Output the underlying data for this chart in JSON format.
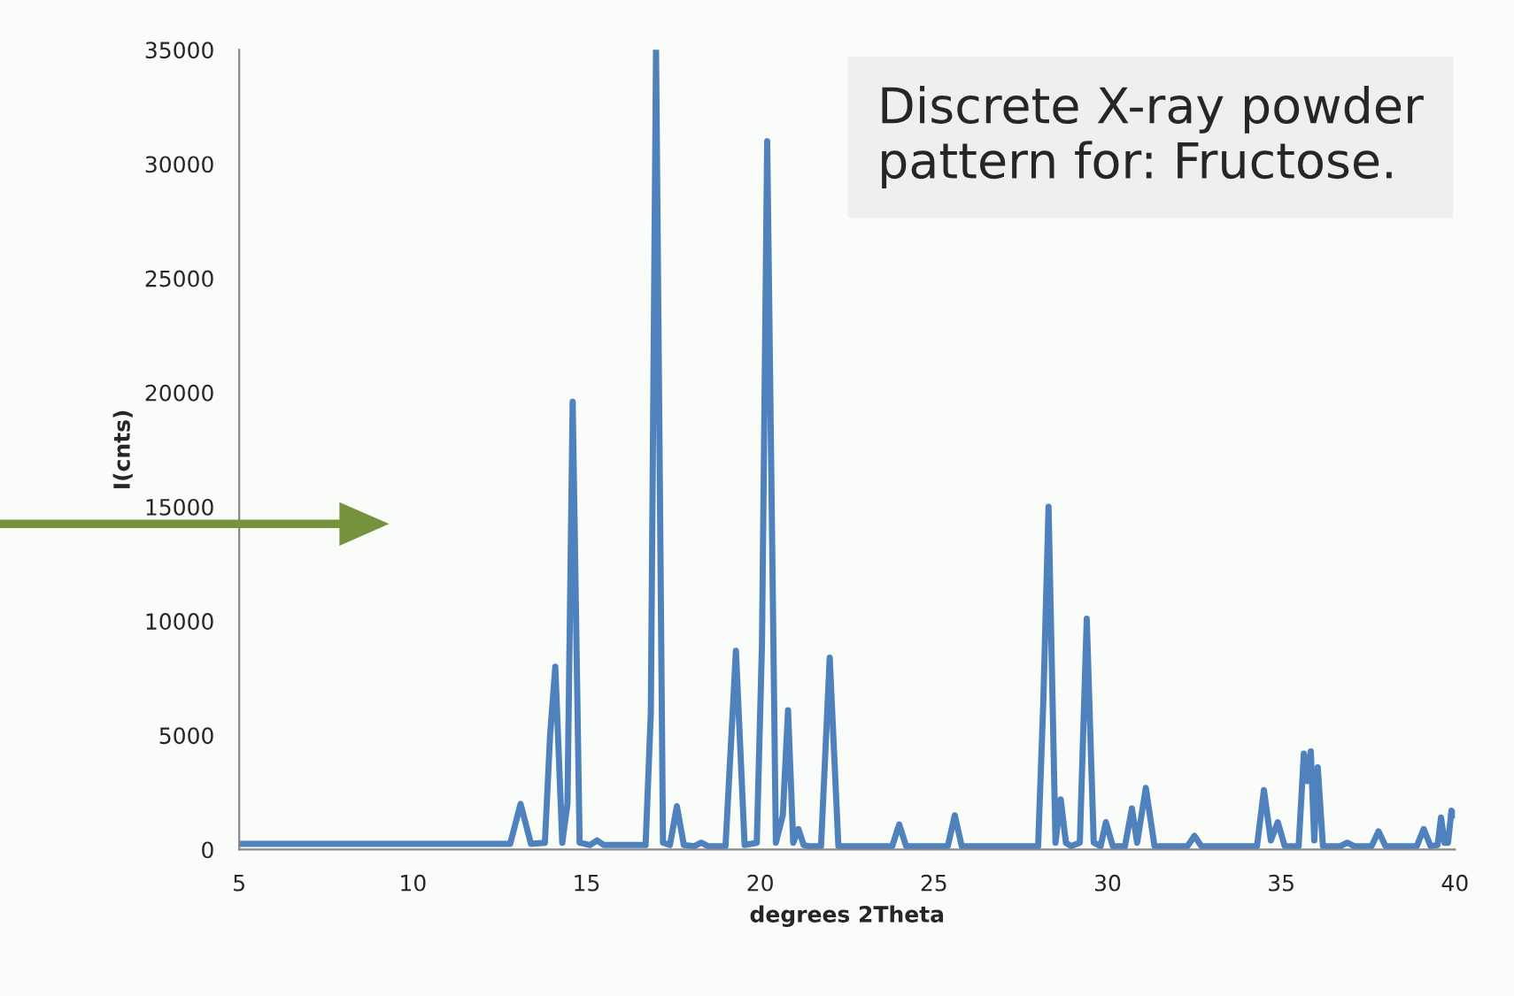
{
  "chart_data": {
    "type": "line",
    "xlabel": "degrees 2Theta",
    "ylabel": "I(cnts)",
    "annotations": [
      "Discrete X-ray powder pattern for: Fructose."
    ],
    "x": [
      5,
      12.8,
      13.1,
      13.4,
      13.8,
      13.95,
      14.1,
      14.3,
      14.45,
      14.6,
      14.8,
      15.1,
      15.3,
      15.5,
      16.7,
      16.85,
      17.0,
      17.2,
      17.4,
      17.6,
      17.8,
      18.1,
      18.3,
      18.5,
      19.0,
      19.3,
      19.55,
      19.9,
      20.05,
      20.2,
      20.45,
      20.65,
      20.8,
      20.95,
      21.1,
      21.25,
      21.4,
      21.75,
      22.0,
      22.25,
      23.8,
      24.0,
      24.2,
      25.4,
      25.6,
      25.8,
      26.5,
      28.0,
      28.15,
      28.3,
      28.5,
      28.65,
      28.8,
      28.95,
      29.2,
      29.4,
      29.6,
      29.8,
      29.95,
      30.15,
      30.5,
      30.7,
      30.85,
      31.1,
      31.35,
      32.3,
      32.5,
      32.7,
      34.3,
      34.5,
      34.7,
      34.9,
      35.1,
      35.5,
      35.65,
      35.75,
      35.85,
      35.95,
      36.05,
      36.2,
      36.7,
      36.9,
      37.1,
      37.6,
      37.8,
      38.0,
      38.9,
      39.1,
      39.3,
      39.5,
      39.6,
      39.7,
      39.8,
      39.9,
      40
    ],
    "series": [
      {
        "color": "#4f81bd",
        "values": [
          250,
          250,
          2000,
          250,
          300,
          5000,
          8000,
          300,
          2000,
          19600,
          300,
          200,
          400,
          200,
          200,
          6000,
          35000,
          300,
          200,
          1900,
          200,
          150,
          300,
          150,
          150,
          8700,
          200,
          300,
          9000,
          31000,
          300,
          1500,
          6100,
          300,
          900,
          200,
          150,
          150,
          8400,
          150,
          150,
          1100,
          150,
          150,
          1500,
          150,
          150,
          150,
          6500,
          15000,
          300,
          2200,
          300,
          150,
          300,
          10100,
          300,
          150,
          1200,
          150,
          150,
          1800,
          300,
          2700,
          150,
          150,
          600,
          150,
          150,
          2600,
          400,
          1200,
          150,
          150,
          4200,
          3000,
          4300,
          400,
          3600,
          150,
          150,
          300,
          150,
          150,
          800,
          150,
          150,
          900,
          150,
          200,
          1400,
          300,
          300,
          1700,
          1500
        ]
      }
    ],
    "xlim": [
      5,
      40
    ],
    "xticks": [
      5,
      10,
      15,
      20,
      25,
      30,
      35,
      40
    ],
    "ylim": [
      0,
      35000
    ],
    "yticks": [
      0,
      5000,
      10000,
      15000,
      20000,
      25000,
      30000,
      35000
    ],
    "grid": false,
    "legend": false
  }
}
